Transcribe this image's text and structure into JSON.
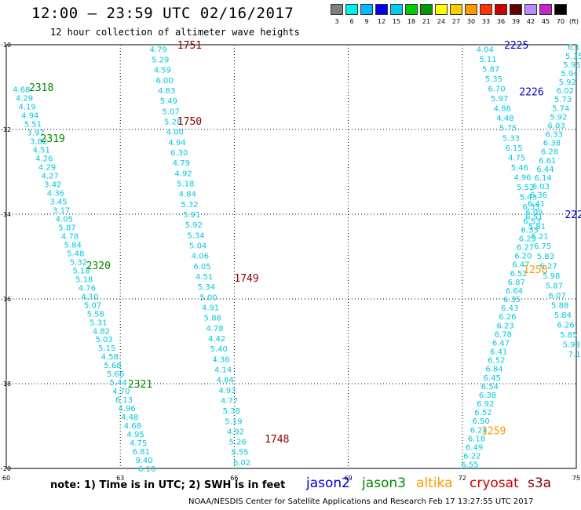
{
  "title": "12:00 — 23:59 UTC 02/16/2017",
  "subtitle": "12 hour collection of altimeter wave heights",
  "legend": {
    "unit": "(ft)",
    "colors": [
      "#7f7f7f",
      "#00eeee",
      "#00bbff",
      "#0000ee",
      "#00ccee",
      "#00cc00",
      "#009900",
      "#ffff00",
      "#ffcc00",
      "#ff9900",
      "#ff3300",
      "#cc0000",
      "#660000",
      "#bb88ff",
      "#cc22cc",
      "#000000"
    ],
    "labels": [
      "3",
      "6",
      "9",
      "12",
      "15",
      "18",
      "21",
      "24",
      "27",
      "30",
      "33",
      "36",
      "39",
      "42",
      "45",
      "70"
    ]
  },
  "axes": {
    "x_ticks": [
      "60",
      "63",
      "66",
      "69",
      "72",
      "75"
    ],
    "y_ticks": [
      "-10",
      "-12",
      "-14",
      "-16",
      "-18",
      "-20"
    ]
  },
  "note": "note: 1) Time is in UTC; 2) SWH is in feet",
  "satellites": [
    {
      "name": "jason2",
      "color": "#0000cc"
    },
    {
      "name": "jason3",
      "color": "#008800"
    },
    {
      "name": "altika",
      "color": "#ff9900"
    },
    {
      "name": "cryosat",
      "color": "#cc0000"
    },
    {
      "name": "s3a",
      "color": "#880000"
    }
  ],
  "credit": "NOAA/NESDIS Center for Satellite Applications and Research   Feb 17 13:27:55 UTC 2017",
  "track_labels": [
    {
      "text": "1751",
      "lon": 64.5,
      "lat": -10.0,
      "color": "#880000"
    },
    {
      "text": "1750",
      "lon": 64.5,
      "lat": -11.8,
      "color": "#880000"
    },
    {
      "text": "1749",
      "lon": 66.0,
      "lat": -15.5,
      "color": "#880000"
    },
    {
      "text": "1748",
      "lon": 66.8,
      "lat": -19.3,
      "color": "#880000"
    },
    {
      "text": "2318",
      "lon": 60.6,
      "lat": -11.0,
      "color": "#008800"
    },
    {
      "text": "2319",
      "lon": 60.9,
      "lat": -12.2,
      "color": "#008800"
    },
    {
      "text": "2320",
      "lon": 62.1,
      "lat": -15.2,
      "color": "#008800"
    },
    {
      "text": "2321",
      "lon": 63.2,
      "lat": -18.0,
      "color": "#008800"
    },
    {
      "text": "2225",
      "lon": 73.1,
      "lat": -10.0,
      "color": "#0000cc"
    },
    {
      "text": "2226",
      "lon": 73.5,
      "lat": -11.1,
      "color": "#0000cc"
    },
    {
      "text": "222",
      "lon": 74.7,
      "lat": -14.0,
      "color": "#0000cc"
    },
    {
      "text": "1258",
      "lon": 73.6,
      "lat": -15.3,
      "color": "#ff9900"
    },
    {
      "text": "1259",
      "lon": 72.5,
      "lat": -19.1,
      "color": "#ff9900"
    }
  ],
  "chart_data": {
    "type": "scatter",
    "title": "12:00 — 23:59 UTC 02/16/2017",
    "subtitle": "12 hour collection of altimeter wave heights",
    "units": "ft",
    "xlim": [
      60,
      75
    ],
    "ylim": [
      -20,
      -10
    ],
    "tracks": [
      {
        "id": "s3a-pass-1751-1748",
        "sat": "s3a",
        "color": "#00c8e0",
        "lon_start": 64.0,
        "lat_start": -10.1,
        "lon_end": 66.2,
        "lat_end": -19.85,
        "values": [
          4.79,
          5.29,
          4.59,
          6.0,
          4.83,
          5.49,
          5.07,
          5.28,
          4.0,
          4.94,
          6.3,
          4.79,
          4.92,
          5.18,
          4.84,
          5.32,
          5.91,
          5.92,
          5.34,
          5.04,
          4.06,
          6.05,
          4.51,
          5.34,
          5.0,
          4.91,
          5.88,
          4.78,
          4.42,
          5.4,
          4.36,
          4.14,
          4.84,
          4.93,
          4.77,
          5.38,
          5.19,
          4.92,
          5.26,
          5.55,
          6.02
        ]
      },
      {
        "id": "jason3-pass-2318-2321",
        "sat": "jason3",
        "color": "#00c8e0",
        "lon_start": 60.4,
        "lat_start": -11.05,
        "lon_end": 63.7,
        "lat_end": -20.0,
        "values": [
          4.68,
          4.29,
          4.19,
          4.94,
          5.51,
          3.97,
          3.82,
          4.51,
          4.26,
          4.29,
          4.27,
          3.42,
          4.36,
          3.45,
          3.17,
          4.05,
          5.87,
          4.78,
          5.84,
          5.48,
          5.32,
          5.18,
          5.18,
          4.76,
          4.1,
          5.07,
          5.58,
          5.31,
          4.82,
          5.03,
          5.15,
          4.58,
          5.68,
          5.66,
          5.44,
          4.7,
          6.13,
          4.96,
          4.48,
          4.68,
          4.95,
          4.75,
          6.81,
          9.4,
          6.1
        ]
      },
      {
        "id": "jason2-pass-2225-2226",
        "sat": "jason2",
        "color": "#00c8e0",
        "lon_start": 72.6,
        "lat_start": -10.1,
        "lon_end": 74.95,
        "lat_end": -17.3,
        "values": [
          4.04,
          5.11,
          5.87,
          5.35,
          6.7,
          5.97,
          4.86,
          4.48,
          5.75,
          5.33,
          6.15,
          4.75,
          5.46,
          4.96,
          5.52,
          5.43,
          6.35,
          6.51,
          5.81,
          6.21,
          6.75,
          5.83,
          6.27,
          5.98,
          5.87,
          6.07,
          5.88,
          5.84,
          6.26,
          5.85,
          5.93,
          7.1
        ]
      },
      {
        "id": "altika-pass-1258-1259",
        "sat": "altika",
        "color": "#00c8e0",
        "lon_start": 75.0,
        "lat_start": -10.05,
        "lon_end": 72.2,
        "lat_end": -19.9,
        "values": [
          6.13,
          5.35,
          5.95,
          5.94,
          5.92,
          6.02,
          5.73,
          5.74,
          5.92,
          6.03,
          6.33,
          6.38,
          6.28,
          6.61,
          6.44,
          6.14,
          6.03,
          6.36,
          6.41,
          6.09,
          6.53,
          6.35,
          6.25,
          6.27,
          6.2,
          6.47,
          6.52,
          6.87,
          6.64,
          6.35,
          6.43,
          6.26,
          6.23,
          6.78,
          6.47,
          6.41,
          6.52,
          6.84,
          6.45,
          6.54,
          6.38,
          6.92,
          6.52,
          6.5,
          6.24,
          6.18,
          6.49,
          6.22,
          6.55
        ]
      }
    ]
  }
}
